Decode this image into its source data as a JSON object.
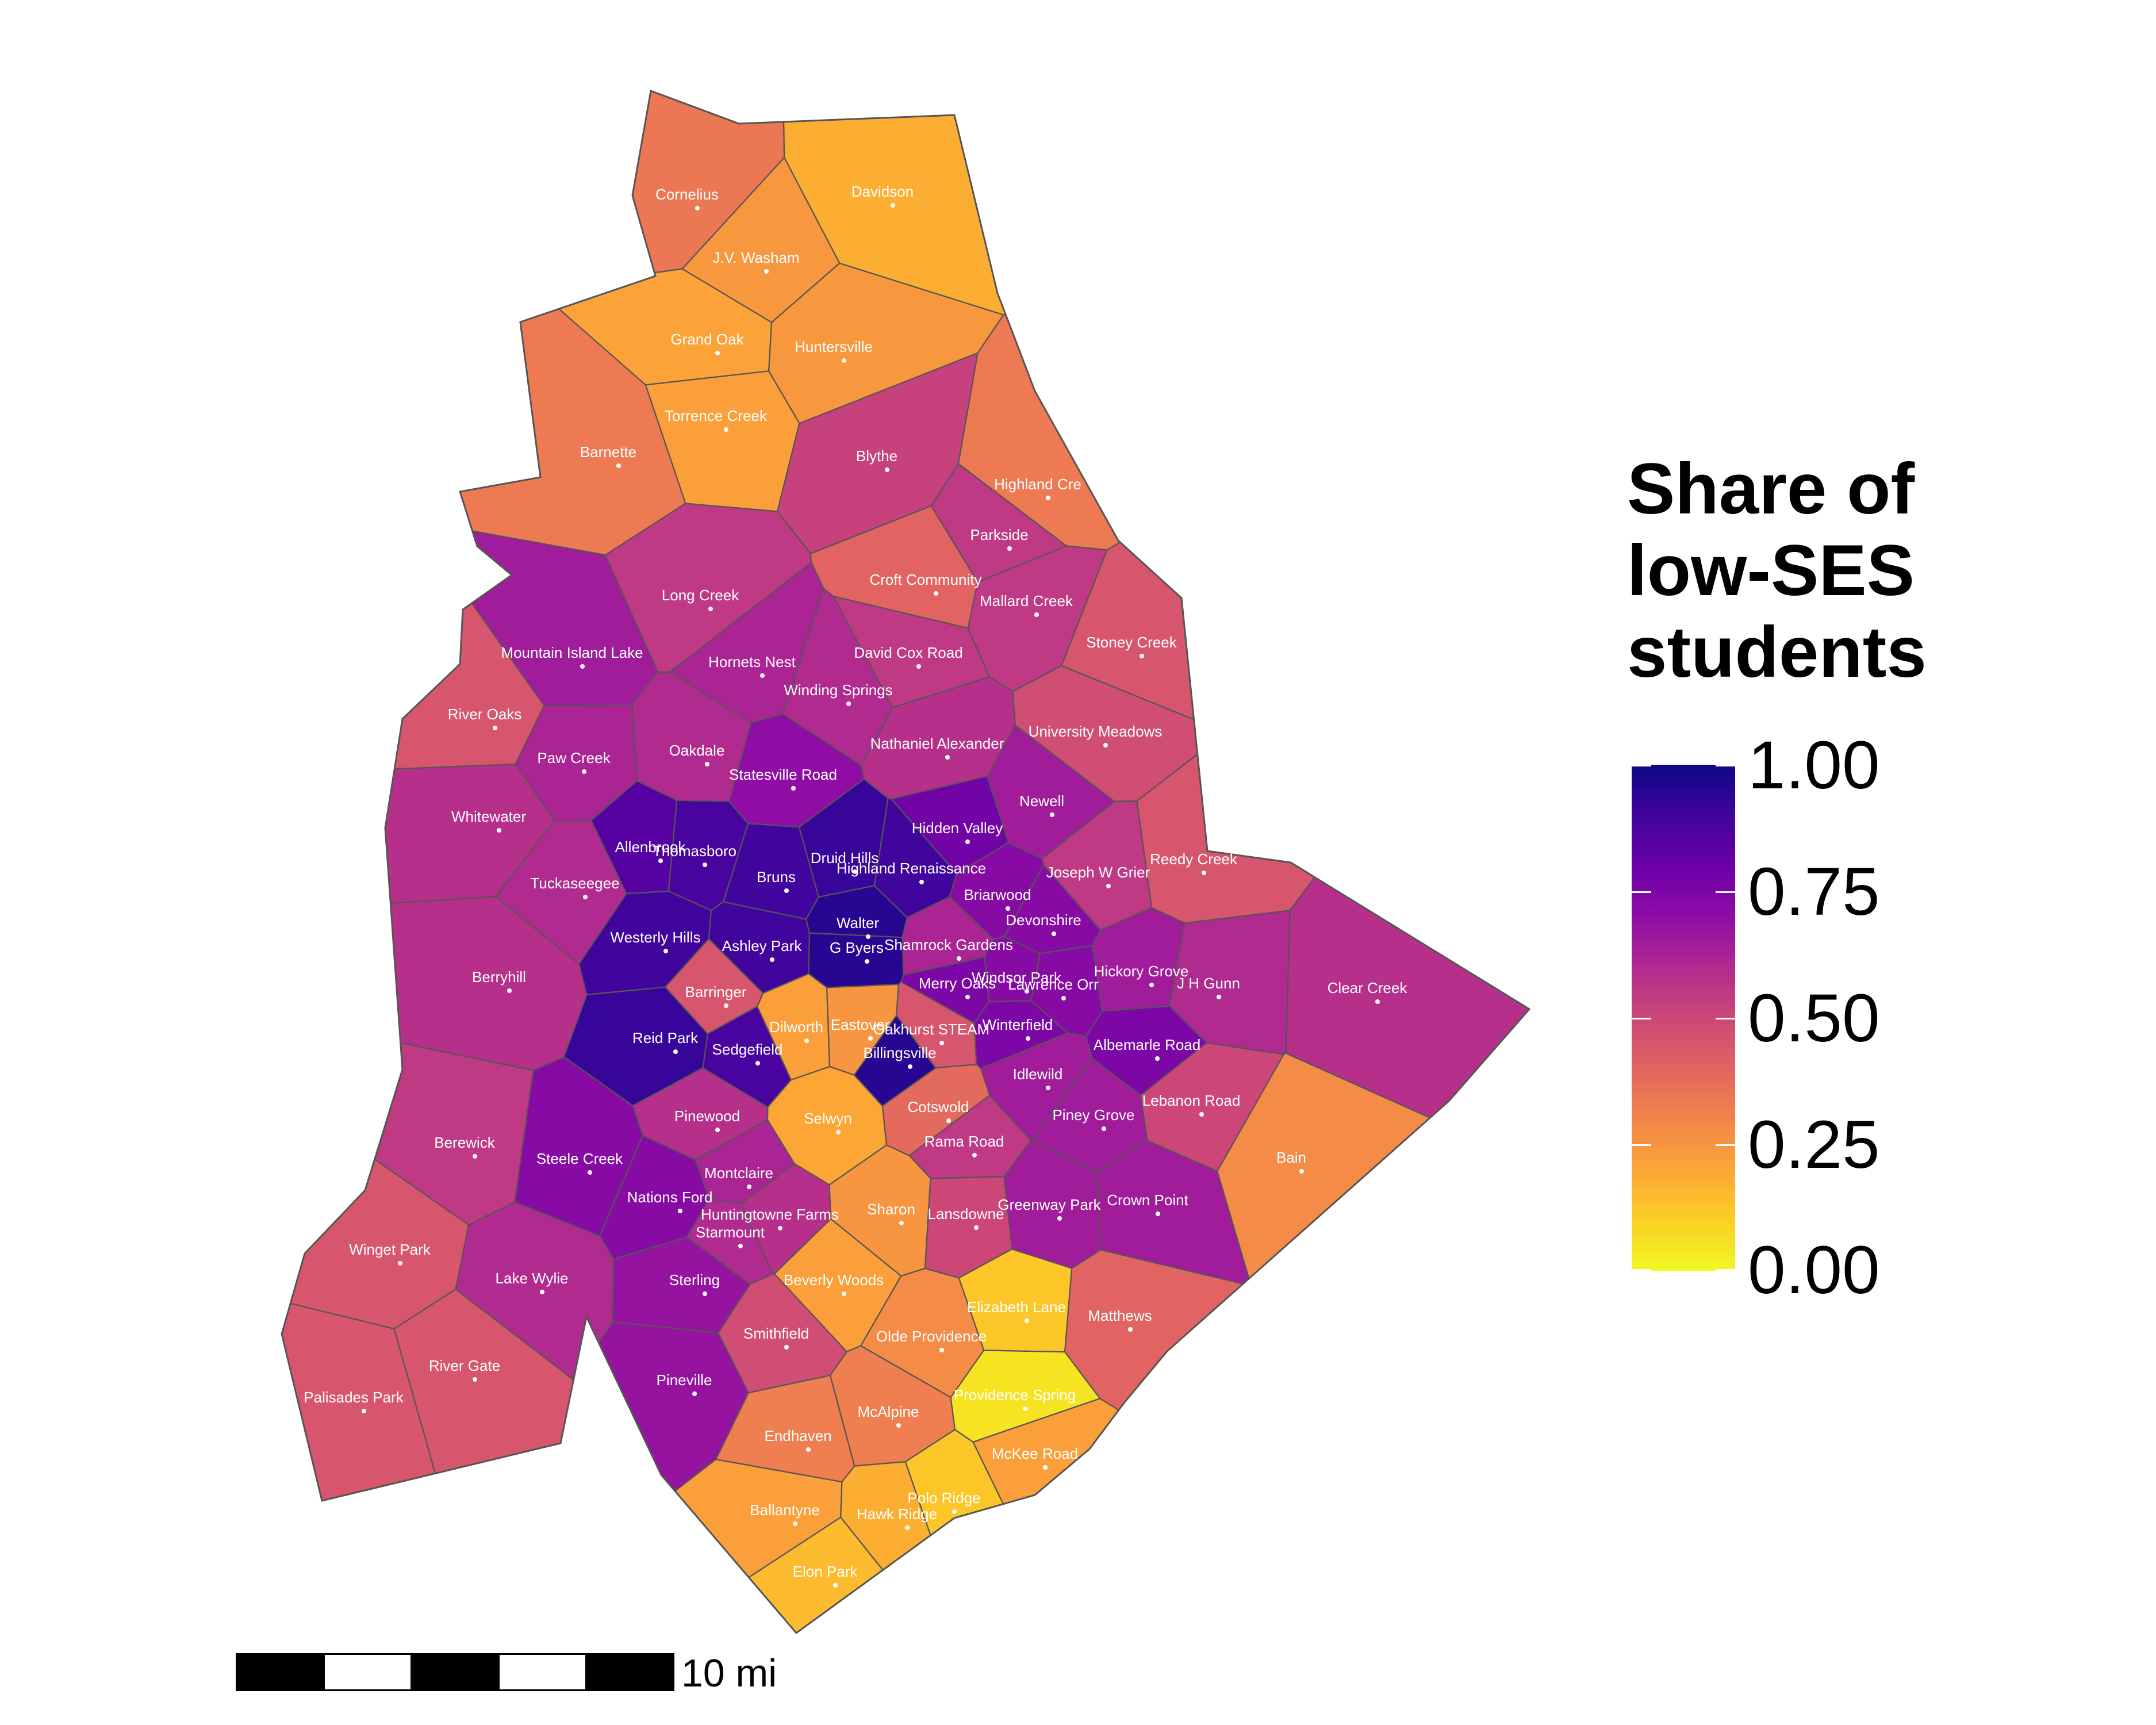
{
  "legend": {
    "title_lines": [
      "Share of",
      "low-SES",
      "students"
    ],
    "ticks": [
      "1.00",
      "0.75",
      "0.50",
      "0.25",
      "0.00"
    ],
    "colormap": "plasma (reversed: 0 = yellow, 1 = dark blue)"
  },
  "scale_bar": {
    "label": "10 mi"
  },
  "schools": [
    {
      "name": "Cornelius",
      "share": 0.34
    },
    {
      "name": "Davidson",
      "share": 0.18
    },
    {
      "name": "J.V. Washam",
      "share": 0.24
    },
    {
      "name": "Grand Oak",
      "share": 0.21
    },
    {
      "name": "Huntersville",
      "share": 0.24
    },
    {
      "name": "Torrence Creek",
      "share": 0.22
    },
    {
      "name": "Barnette",
      "share": 0.33
    },
    {
      "name": "Blythe",
      "share": 0.52
    },
    {
      "name": "Highland Cre",
      "share": 0.33
    },
    {
      "name": "Parkside",
      "share": 0.55
    },
    {
      "name": "Long Creek",
      "share": 0.55
    },
    {
      "name": "Croft Community",
      "share": 0.4
    },
    {
      "name": "Mallard Creek",
      "share": 0.55
    },
    {
      "name": "Stoney Creek",
      "share": 0.45
    },
    {
      "name": "Mountain Island Lake",
      "share": 0.65
    },
    {
      "name": "Hornets Nest",
      "share": 0.62
    },
    {
      "name": "David Cox Road",
      "share": 0.55
    },
    {
      "name": "Winding Springs",
      "share": 0.6
    },
    {
      "name": "River Oaks",
      "share": 0.45
    },
    {
      "name": "Oakdale",
      "share": 0.6
    },
    {
      "name": "Nathaniel Alexander",
      "share": 0.58
    },
    {
      "name": "University Meadows",
      "share": 0.48
    },
    {
      "name": "Paw Creek",
      "share": 0.62
    },
    {
      "name": "Statesville Road",
      "share": 0.7
    },
    {
      "name": "Whitewater",
      "share": 0.58
    },
    {
      "name": "Newell",
      "share": 0.65
    },
    {
      "name": "Allenbrook",
      "share": 0.85
    },
    {
      "name": "Thomasboro",
      "share": 0.88
    },
    {
      "name": "Druid Hills",
      "share": 0.92
    },
    {
      "name": "Hidden Valley",
      "share": 0.78
    },
    {
      "name": "Highland Renaissance",
      "share": 0.9
    },
    {
      "name": "Reedy Creek",
      "share": 0.45
    },
    {
      "name": "Bruns",
      "share": 0.9
    },
    {
      "name": "Joseph W Grier",
      "share": 0.55
    },
    {
      "name": "Tuckaseegee",
      "share": 0.6
    },
    {
      "name": "Briarwood",
      "share": 0.72
    },
    {
      "name": "Devonshire",
      "share": 0.72
    },
    {
      "name": "Walter",
      "share": 0.95
    },
    {
      "name": "Westerly Hills",
      "share": 0.9
    },
    {
      "name": "Ashley Park",
      "share": 0.9
    },
    {
      "name": "G Byers",
      "share": 0.95
    },
    {
      "name": "Shamrock Gardens",
      "share": 0.62
    },
    {
      "name": "Berryhill",
      "share": 0.58
    },
    {
      "name": "Hickory Grove",
      "share": 0.65
    },
    {
      "name": "Merry Oaks",
      "share": 0.75
    },
    {
      "name": "Windsor Park",
      "share": 0.72
    },
    {
      "name": "Lawrence Orr",
      "share": 0.72
    },
    {
      "name": "J H Gunn",
      "share": 0.6
    },
    {
      "name": "Clear Creek",
      "share": 0.58
    },
    {
      "name": "Barringer",
      "share": 0.45
    },
    {
      "name": "Dilworth",
      "share": 0.22
    },
    {
      "name": "Eastover",
      "share": 0.25
    },
    {
      "name": "Oakhurst STEAM",
      "share": 0.45
    },
    {
      "name": "Winterfield",
      "share": 0.75
    },
    {
      "name": "Reid Park",
      "share": 0.92
    },
    {
      "name": "Sedgefield",
      "share": 0.88
    },
    {
      "name": "Billingsville",
      "share": 0.95
    },
    {
      "name": "Albemarle Road",
      "share": 0.75
    },
    {
      "name": "Idlewild",
      "share": 0.65
    },
    {
      "name": "Lebanon Road",
      "share": 0.5
    },
    {
      "name": "Cotswold",
      "share": 0.38
    },
    {
      "name": "Piney Grove",
      "share": 0.65
    },
    {
      "name": "Selwyn",
      "share": 0.2
    },
    {
      "name": "Bain",
      "share": 0.28
    },
    {
      "name": "Pinewood",
      "share": 0.58
    },
    {
      "name": "Berewick",
      "share": 0.55
    },
    {
      "name": "Rama Road",
      "share": 0.55
    },
    {
      "name": "Steele Creek",
      "share": 0.72
    },
    {
      "name": "Montclaire",
      "share": 0.62
    },
    {
      "name": "Crown Point",
      "share": 0.65
    },
    {
      "name": "Greenway Park",
      "share": 0.65
    },
    {
      "name": "Nations Ford",
      "share": 0.72
    },
    {
      "name": "Sharon",
      "share": 0.25
    },
    {
      "name": "Lansdowne",
      "share": 0.5
    },
    {
      "name": "Huntingtowne Farms",
      "share": 0.58
    },
    {
      "name": "Starmount",
      "share": 0.6
    },
    {
      "name": "Winget Park",
      "share": 0.45
    },
    {
      "name": "Lake Wylie",
      "share": 0.6
    },
    {
      "name": "Sterling",
      "share": 0.68
    },
    {
      "name": "Beverly Woods",
      "share": 0.22
    },
    {
      "name": "Elizabeth Lane",
      "share": 0.12
    },
    {
      "name": "Matthews",
      "share": 0.4
    },
    {
      "name": "Smithfield",
      "share": 0.48
    },
    {
      "name": "Olde Providence",
      "share": 0.28
    },
    {
      "name": "River Gate",
      "share": 0.45
    },
    {
      "name": "Pineville",
      "share": 0.68
    },
    {
      "name": "Palisades Park",
      "share": 0.45
    },
    {
      "name": "McAlpine",
      "share": 0.32
    },
    {
      "name": "Providence Spring",
      "share": 0.05
    },
    {
      "name": "Endhaven",
      "share": 0.32
    },
    {
      "name": "McKee Road",
      "share": 0.22
    },
    {
      "name": "Polo Ridge",
      "share": 0.12
    },
    {
      "name": "Ballantyne",
      "share": 0.22
    },
    {
      "name": "Hawk Ridge",
      "share": 0.18
    },
    {
      "name": "Elon Park",
      "share": 0.15
    }
  ]
}
